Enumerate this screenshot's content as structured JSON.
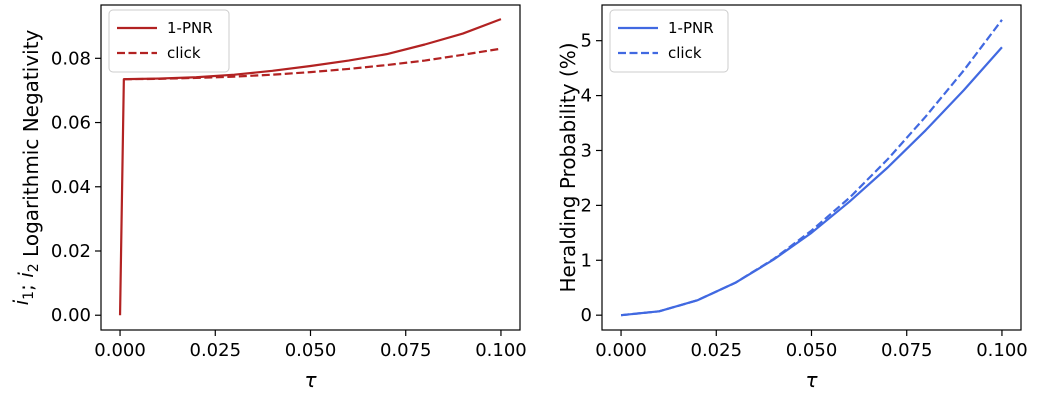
{
  "chart_data": [
    {
      "type": "line",
      "xlabel": "τ",
      "ylabel_main": "Logarithmic Negativity",
      "ylabel_prefix": [
        {
          "sym": "i",
          "sub": "1"
        },
        {
          "sep": "; "
        },
        {
          "sym": "i",
          "sub": "2"
        }
      ],
      "xlim": [
        -0.005,
        0.105
      ],
      "ylim": [
        -0.0046,
        0.0966
      ],
      "xticks": [
        0.0,
        0.025,
        0.05,
        0.075,
        0.1
      ],
      "xtick_labels": [
        "0.000",
        "0.025",
        "0.050",
        "0.075",
        "0.100"
      ],
      "yticks": [
        0.0,
        0.02,
        0.04,
        0.06,
        0.08
      ],
      "ytick_labels": [
        "0.00",
        "0.02",
        "0.04",
        "0.06",
        "0.08"
      ],
      "legend_position": "upper left",
      "series": [
        {
          "name": "1-PNR",
          "color": "#b22222",
          "style": "solid",
          "x": [
            0.0,
            0.001,
            0.01,
            0.02,
            0.03,
            0.04,
            0.05,
            0.06,
            0.07,
            0.08,
            0.09,
            0.1
          ],
          "y": [
            0.0,
            0.0735,
            0.0737,
            0.0741,
            0.0749,
            0.0761,
            0.0776,
            0.0793,
            0.0813,
            0.0843,
            0.0877,
            0.0922
          ]
        },
        {
          "name": "click",
          "color": "#b22222",
          "style": "dashed",
          "x": [
            0.001,
            0.01,
            0.02,
            0.03,
            0.04,
            0.05,
            0.06,
            0.07,
            0.08,
            0.09,
            0.1
          ],
          "y": [
            0.0735,
            0.0736,
            0.0739,
            0.0743,
            0.0749,
            0.0757,
            0.0767,
            0.0779,
            0.0793,
            0.0811,
            0.083
          ]
        }
      ]
    },
    {
      "type": "line",
      "xlabel": "τ",
      "ylabel": "Heralding Probability (%)",
      "xlim": [
        -0.005,
        0.105
      ],
      "ylim": [
        -0.27,
        5.65
      ],
      "xticks": [
        0.0,
        0.025,
        0.05,
        0.075,
        0.1
      ],
      "xtick_labels": [
        "0.000",
        "0.025",
        "0.050",
        "0.075",
        "0.100"
      ],
      "yticks": [
        0,
        1,
        2,
        3,
        4,
        5
      ],
      "ytick_labels": [
        "0",
        "1",
        "2",
        "3",
        "4",
        "5"
      ],
      "legend_position": "upper left",
      "series": [
        {
          "name": "1-PNR",
          "color": "#4169e1",
          "style": "solid",
          "x": [
            0.0,
            0.01,
            0.02,
            0.03,
            0.04,
            0.05,
            0.06,
            0.07,
            0.08,
            0.09,
            0.1
          ],
          "y": [
            0.0,
            0.07,
            0.27,
            0.59,
            1.01,
            1.5,
            2.07,
            2.69,
            3.37,
            4.1,
            4.88
          ]
        },
        {
          "name": "click",
          "color": "#4169e1",
          "style": "dashed",
          "x": [
            0.0,
            0.01,
            0.02,
            0.03,
            0.04,
            0.05,
            0.06,
            0.07,
            0.08,
            0.09,
            0.1
          ],
          "y": [
            0.0,
            0.07,
            0.27,
            0.59,
            1.02,
            1.54,
            2.14,
            2.84,
            3.62,
            4.46,
            5.38
          ]
        }
      ]
    }
  ]
}
